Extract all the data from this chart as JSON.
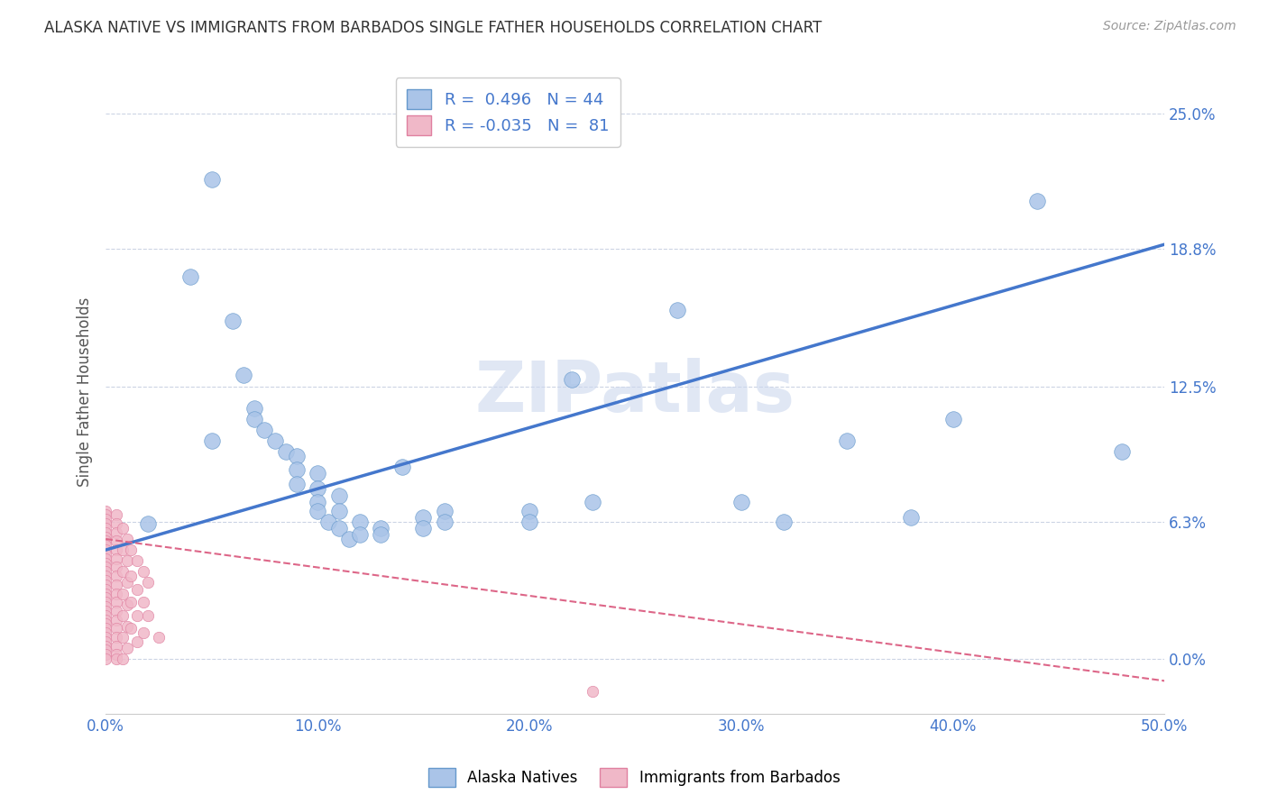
{
  "title": "ALASKA NATIVE VS IMMIGRANTS FROM BARBADOS SINGLE FATHER HOUSEHOLDS CORRELATION CHART",
  "source": "Source: ZipAtlas.com",
  "ylabel": "Single Father Households",
  "xlabel_ticks": [
    "0.0%",
    "10.0%",
    "20.0%",
    "30.0%",
    "40.0%",
    "50.0%"
  ],
  "xlabel_vals": [
    0.0,
    0.1,
    0.2,
    0.3,
    0.4,
    0.5
  ],
  "ylabel_ticks": [
    "0.0%",
    "6.3%",
    "12.5%",
    "18.8%",
    "25.0%"
  ],
  "ylabel_vals": [
    0.0,
    0.063,
    0.125,
    0.188,
    0.25
  ],
  "xmin": 0.0,
  "xmax": 0.5,
  "ymin": -0.025,
  "ymax": 0.27,
  "alaska_color": "#aac4e8",
  "barbados_color": "#f0b8c8",
  "alaska_edge": "#6699cc",
  "barbados_edge": "#e080a0",
  "trendline1_color": "#4477cc",
  "trendline2_color": "#dd6688",
  "watermark": "ZIPatlas",
  "watermark_color": "#ccd8ee",
  "alaska_points": [
    [
      0.02,
      0.062
    ],
    [
      0.04,
      0.175
    ],
    [
      0.05,
      0.22
    ],
    [
      0.05,
      0.1
    ],
    [
      0.06,
      0.155
    ],
    [
      0.065,
      0.13
    ],
    [
      0.07,
      0.115
    ],
    [
      0.07,
      0.11
    ],
    [
      0.075,
      0.105
    ],
    [
      0.08,
      0.1
    ],
    [
      0.085,
      0.095
    ],
    [
      0.09,
      0.093
    ],
    [
      0.09,
      0.087
    ],
    [
      0.09,
      0.08
    ],
    [
      0.1,
      0.085
    ],
    [
      0.1,
      0.078
    ],
    [
      0.1,
      0.072
    ],
    [
      0.1,
      0.068
    ],
    [
      0.105,
      0.063
    ],
    [
      0.11,
      0.075
    ],
    [
      0.11,
      0.068
    ],
    [
      0.11,
      0.06
    ],
    [
      0.115,
      0.055
    ],
    [
      0.12,
      0.063
    ],
    [
      0.12,
      0.057
    ],
    [
      0.13,
      0.06
    ],
    [
      0.13,
      0.057
    ],
    [
      0.14,
      0.088
    ],
    [
      0.15,
      0.065
    ],
    [
      0.15,
      0.06
    ],
    [
      0.16,
      0.068
    ],
    [
      0.16,
      0.063
    ],
    [
      0.2,
      0.068
    ],
    [
      0.2,
      0.063
    ],
    [
      0.22,
      0.128
    ],
    [
      0.23,
      0.072
    ],
    [
      0.27,
      0.16
    ],
    [
      0.3,
      0.072
    ],
    [
      0.32,
      0.063
    ],
    [
      0.35,
      0.1
    ],
    [
      0.38,
      0.065
    ],
    [
      0.4,
      0.11
    ],
    [
      0.44,
      0.21
    ],
    [
      0.48,
      0.095
    ]
  ],
  "barbados_points": [
    [
      0.0,
      0.068
    ],
    [
      0.0,
      0.066
    ],
    [
      0.0,
      0.064
    ],
    [
      0.0,
      0.062
    ],
    [
      0.0,
      0.06
    ],
    [
      0.0,
      0.058
    ],
    [
      0.0,
      0.056
    ],
    [
      0.0,
      0.054
    ],
    [
      0.0,
      0.052
    ],
    [
      0.0,
      0.05
    ],
    [
      0.0,
      0.048
    ],
    [
      0.0,
      0.046
    ],
    [
      0.0,
      0.044
    ],
    [
      0.0,
      0.042
    ],
    [
      0.0,
      0.04
    ],
    [
      0.0,
      0.038
    ],
    [
      0.0,
      0.036
    ],
    [
      0.0,
      0.034
    ],
    [
      0.0,
      0.032
    ],
    [
      0.0,
      0.03
    ],
    [
      0.0,
      0.028
    ],
    [
      0.0,
      0.026
    ],
    [
      0.0,
      0.024
    ],
    [
      0.0,
      0.022
    ],
    [
      0.0,
      0.02
    ],
    [
      0.0,
      0.018
    ],
    [
      0.0,
      0.016
    ],
    [
      0.0,
      0.014
    ],
    [
      0.0,
      0.012
    ],
    [
      0.0,
      0.01
    ],
    [
      0.0,
      0.008
    ],
    [
      0.0,
      0.006
    ],
    [
      0.0,
      0.004
    ],
    [
      0.0,
      0.002
    ],
    [
      0.0,
      0.0
    ],
    [
      0.005,
      0.066
    ],
    [
      0.005,
      0.062
    ],
    [
      0.005,
      0.058
    ],
    [
      0.005,
      0.054
    ],
    [
      0.005,
      0.05
    ],
    [
      0.005,
      0.046
    ],
    [
      0.005,
      0.042
    ],
    [
      0.005,
      0.038
    ],
    [
      0.005,
      0.034
    ],
    [
      0.005,
      0.03
    ],
    [
      0.005,
      0.026
    ],
    [
      0.005,
      0.022
    ],
    [
      0.005,
      0.018
    ],
    [
      0.005,
      0.014
    ],
    [
      0.005,
      0.01
    ],
    [
      0.005,
      0.006
    ],
    [
      0.005,
      0.002
    ],
    [
      0.005,
      0.0
    ],
    [
      0.008,
      0.06
    ],
    [
      0.008,
      0.05
    ],
    [
      0.008,
      0.04
    ],
    [
      0.008,
      0.03
    ],
    [
      0.008,
      0.02
    ],
    [
      0.008,
      0.01
    ],
    [
      0.008,
      0.0
    ],
    [
      0.01,
      0.055
    ],
    [
      0.01,
      0.045
    ],
    [
      0.01,
      0.035
    ],
    [
      0.01,
      0.025
    ],
    [
      0.01,
      0.015
    ],
    [
      0.01,
      0.005
    ],
    [
      0.012,
      0.05
    ],
    [
      0.012,
      0.038
    ],
    [
      0.012,
      0.026
    ],
    [
      0.012,
      0.014
    ],
    [
      0.015,
      0.045
    ],
    [
      0.015,
      0.032
    ],
    [
      0.015,
      0.02
    ],
    [
      0.015,
      0.008
    ],
    [
      0.018,
      0.04
    ],
    [
      0.018,
      0.026
    ],
    [
      0.018,
      0.012
    ],
    [
      0.02,
      0.035
    ],
    [
      0.02,
      0.02
    ],
    [
      0.025,
      0.01
    ],
    [
      0.23,
      -0.015
    ]
  ],
  "trendline1_x": [
    0.0,
    0.5
  ],
  "trendline1_y": [
    0.05,
    0.19
  ],
  "trendline2_x": [
    0.0,
    0.5
  ],
  "trendline2_y": [
    0.055,
    -0.01
  ]
}
